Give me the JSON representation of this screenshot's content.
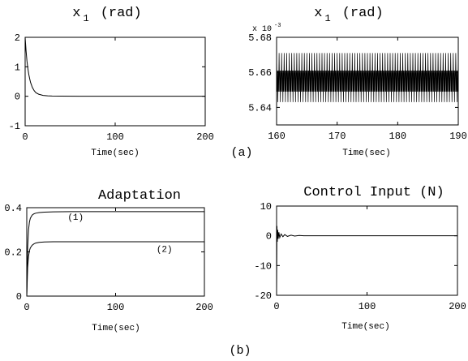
{
  "figure_labels": {
    "a": "(a)",
    "b": "(b)"
  },
  "chart_data": [
    {
      "id": "p1",
      "type": "line",
      "title": "x",
      "title_sub": "1",
      "title_unit": "(rad)",
      "xlabel": "Time(sec)",
      "ylabel": "",
      "xlim": [
        0,
        200
      ],
      "ylim": [
        -1,
        2
      ],
      "xticks": [
        0,
        100,
        200
      ],
      "yticks": [
        -1,
        0,
        1,
        2
      ],
      "grid": false,
      "series": [
        {
          "x": [
            0,
            1,
            2,
            3,
            4,
            5,
            6,
            8,
            10,
            12,
            15,
            20,
            25,
            30,
            40,
            60,
            100,
            150,
            200
          ],
          "y": [
            2.0,
            1.55,
            1.2,
            0.95,
            0.75,
            0.6,
            0.47,
            0.3,
            0.19,
            0.12,
            0.07,
            0.03,
            0.015,
            0.008,
            0.004,
            0.002,
            0.001,
            0.0,
            0.0
          ]
        }
      ]
    },
    {
      "id": "p2",
      "type": "line",
      "title": "x",
      "title_sub": "1",
      "title_unit": "(rad)",
      "scale_note": "x 10",
      "scale_exp": "-3",
      "xlabel": "Time(sec)",
      "ylabel": "",
      "xlim": [
        160,
        190
      ],
      "ylim": [
        5.63,
        5.68
      ],
      "xticks": [
        160,
        170,
        180,
        190
      ],
      "yticks": [
        5.64,
        5.66,
        5.68
      ],
      "ytick_labels": [
        "5.64",
        "5.66",
        "5.68"
      ],
      "grid": false,
      "oscillation": {
        "upper": 5.671,
        "lower": 5.643,
        "inner_upper": 5.661,
        "inner_lower": 5.649,
        "cycles": 72
      }
    },
    {
      "id": "p3",
      "type": "line",
      "title": "Adaptation",
      "xlabel": "Time(sec)",
      "ylabel": "",
      "xlim": [
        0,
        200
      ],
      "ylim": [
        0,
        0.4
      ],
      "xticks": [
        0,
        100,
        200
      ],
      "yticks": [
        0,
        0.2,
        0.4
      ],
      "ytick_labels": [
        "0",
        "0.2",
        "0.4"
      ],
      "grid": false,
      "annotations": [
        {
          "text": "(1)",
          "x": 55,
          "y": 0.345
        },
        {
          "text": "(2)",
          "x": 155,
          "y": 0.2
        }
      ],
      "series": [
        {
          "name": "(1)",
          "x": [
            0,
            1,
            2,
            3,
            4,
            6,
            8,
            10,
            14,
            20,
            30,
            50,
            100,
            200
          ],
          "y": [
            0.0,
            0.22,
            0.3,
            0.335,
            0.352,
            0.366,
            0.372,
            0.375,
            0.378,
            0.38,
            0.381,
            0.382,
            0.382,
            0.382
          ]
        },
        {
          "name": "(2)",
          "x": [
            0,
            1,
            2,
            3,
            4,
            6,
            8,
            10,
            14,
            20,
            30,
            50,
            100,
            200
          ],
          "y": [
            0.0,
            0.13,
            0.18,
            0.205,
            0.218,
            0.23,
            0.236,
            0.24,
            0.243,
            0.245,
            0.246,
            0.246,
            0.246,
            0.246
          ]
        }
      ]
    },
    {
      "id": "p4",
      "type": "line",
      "title": "Control Input (N)",
      "xlabel": "Time(sec)",
      "ylabel": "",
      "xlim": [
        0,
        200
      ],
      "ylim": [
        -20,
        10
      ],
      "xticks": [
        0,
        100,
        200
      ],
      "yticks": [
        -20,
        -10,
        0,
        10
      ],
      "grid": false,
      "series": [
        {
          "x": [
            0,
            0.4,
            0.8,
            1.2,
            1.8,
            2.5,
            3.5,
            5,
            7,
            9,
            12,
            16,
            20,
            25,
            30,
            40,
            60,
            100,
            200
          ],
          "y": [
            -18,
            3.3,
            -2,
            2,
            -1,
            1.2,
            -0.6,
            0.6,
            -0.3,
            0.4,
            -0.2,
            0.2,
            -0.1,
            0.1,
            0.0,
            0.0,
            0.0,
            0.0,
            0.0
          ]
        }
      ]
    }
  ]
}
